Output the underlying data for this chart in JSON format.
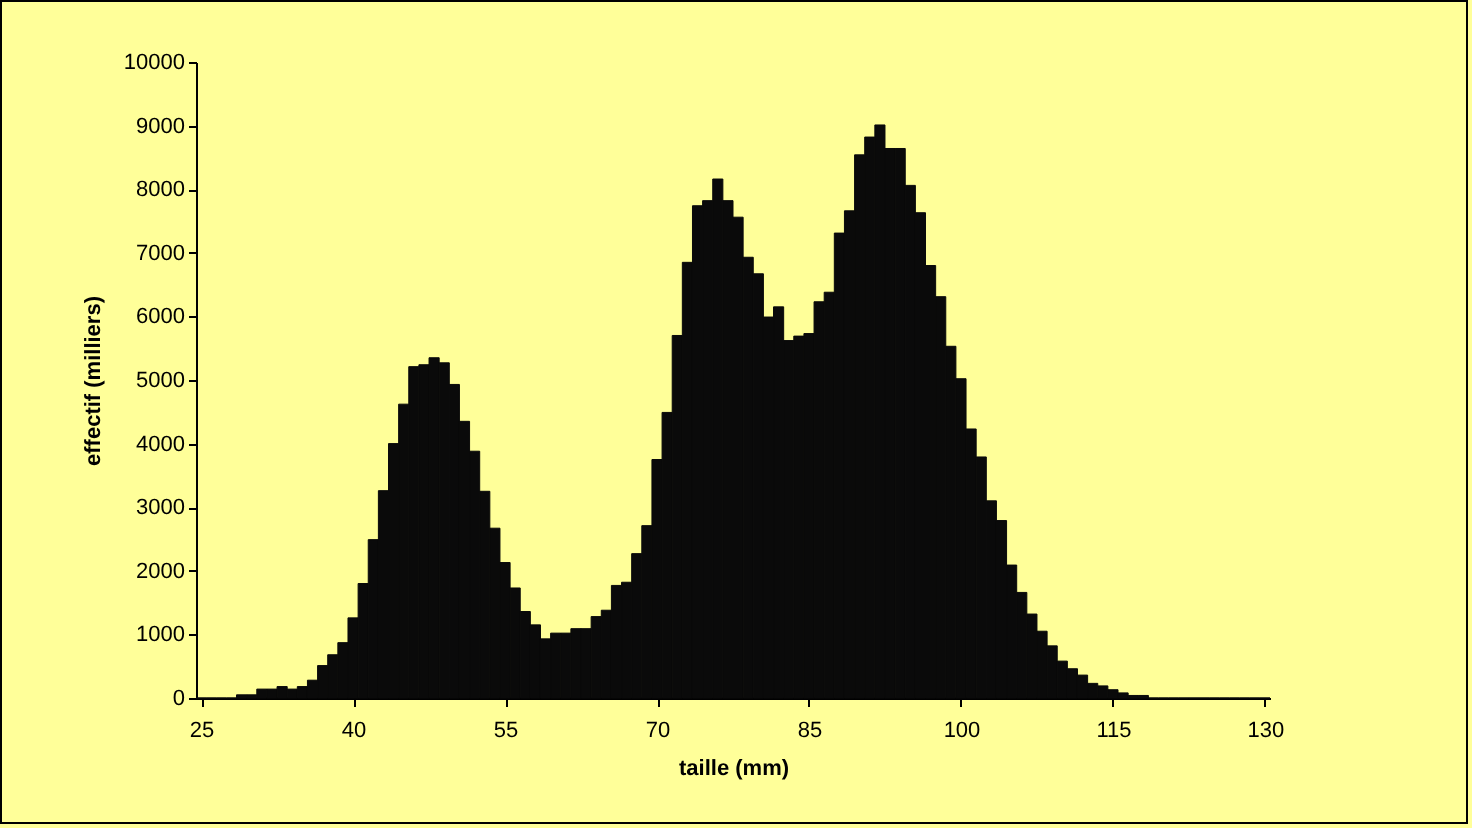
{
  "chart_data": {
    "type": "histogram",
    "xlabel": "taille (mm)",
    "ylabel": "effectif (milliers)",
    "color": "#0a0a0a",
    "bins": [
      24.5,
      25.5,
      26.5,
      27.5,
      28.5,
      29.5,
      30.5,
      31.5,
      32.5,
      33.5,
      34.5,
      35.5,
      36.5,
      37.5,
      38.5,
      39.5,
      40.5,
      41.5,
      42.5,
      43.5,
      44.5,
      45.5,
      46.5,
      47.5,
      48.5,
      49.5,
      50.5,
      51.5,
      52.5,
      53.5,
      54.5,
      55.5,
      56.5,
      57.5,
      58.5,
      59.5,
      60.5,
      61.5,
      62.5,
      63.5,
      64.5,
      65.5,
      66.5,
      67.5,
      68.5,
      69.5,
      70.5,
      71.5,
      72.5,
      73.5,
      74.5,
      75.5,
      76.5,
      77.5,
      78.5,
      79.5,
      80.5,
      81.5,
      82.5,
      83.5,
      84.5,
      85.5,
      86.5,
      87.5,
      88.5,
      89.5,
      90.5,
      91.5,
      92.5,
      93.5,
      94.5,
      95.5,
      96.5,
      97.5,
      98.5,
      99.5,
      100.5,
      101.5,
      102.5,
      103.5,
      104.5,
      105.5,
      106.5,
      107.5,
      108.5,
      109.5,
      110.5,
      111.5,
      112.5,
      113.5,
      114.5,
      115.5,
      116.5,
      117.5,
      118.5,
      119.5,
      120.5,
      121.5,
      122.5,
      123.5,
      124.5,
      125.5,
      126.5,
      127.5,
      128.5,
      129.5,
      130.5
    ],
    "values": [
      0,
      0,
      0,
      0,
      50,
      50,
      140,
      140,
      180,
      140,
      180,
      280,
      510,
      680,
      870,
      1260,
      1800,
      2490,
      3260,
      4000,
      4620,
      5210,
      5240,
      5350,
      5270,
      4930,
      4350,
      3880,
      3250,
      2670,
      2130,
      1730,
      1360,
      1150,
      930,
      1020,
      1020,
      1090,
      1090,
      1280,
      1380,
      1770,
      1820,
      2270,
      2710,
      3750,
      4490,
      5700,
      6850,
      7740,
      7820,
      8160,
      7820,
      7560,
      6930,
      6670,
      5990,
      6150,
      5620,
      5690,
      5730,
      6230,
      6380,
      7310,
      7660,
      8540,
      8820,
      9010,
      8640,
      8640,
      8060,
      7630,
      6800,
      6310,
      5530,
      5020,
      4230,
      3790,
      3100,
      2790,
      2090,
      1660,
      1320,
      1050,
      820,
      580,
      460,
      360,
      230,
      190,
      130,
      80,
      40,
      40,
      0,
      0,
      0,
      0,
      0,
      0,
      0,
      0,
      0,
      0,
      0,
      0
    ],
    "xlim": [
      24.5,
      130.5
    ],
    "xticks": [
      25,
      40,
      55,
      70,
      85,
      100,
      115,
      130
    ],
    "ylim": [
      0,
      10000
    ],
    "yticks": [
      0,
      1000,
      2000,
      3000,
      4000,
      5000,
      6000,
      7000,
      8000,
      9000,
      10000
    ],
    "grid": false
  }
}
